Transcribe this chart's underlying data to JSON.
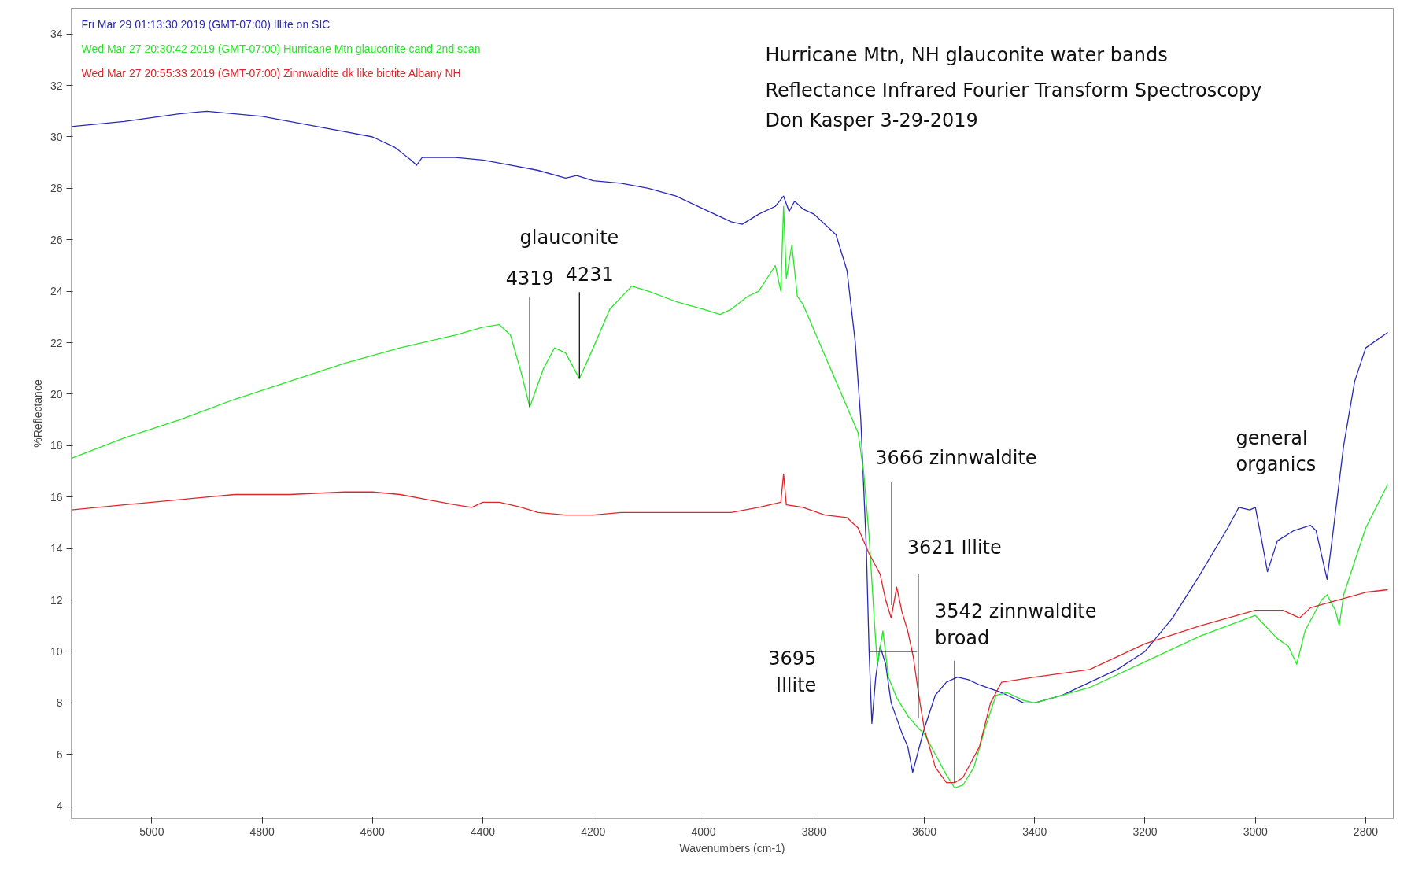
{
  "chart_data": {
    "type": "line",
    "title": "Hurricane Mtn, NH glauconite water bands",
    "subtitle": "Reflectance Infrared Fourier Transform Spectroscopy",
    "xlabel": "Wavenumbers (cm-1)",
    "ylabel": "%Reflectance",
    "xlim": [
      5146,
      2750
    ],
    "ylim": [
      3.5,
      35
    ],
    "xticks": [
      5000,
      4800,
      4600,
      4400,
      4200,
      4000,
      3800,
      3600,
      3400,
      3200,
      3000,
      2800
    ],
    "yticks": [
      4,
      6,
      8,
      10,
      12,
      14,
      16,
      18,
      20,
      22,
      24,
      26,
      28,
      30,
      32,
      34
    ],
    "grid": false,
    "legend": "top left",
    "marker": "none",
    "line_style": "solid",
    "series": [
      {
        "name": "Fri Mar 29 01:13:30 2019 (GMT-07:00) Illite on SIC",
        "color": "#2a2ab8",
        "x": [
          5146,
          5050,
          4950,
          4900,
          4850,
          4800,
          4750,
          4700,
          4650,
          4600,
          4560,
          4530,
          4520,
          4510,
          4450,
          4400,
          4350,
          4300,
          4250,
          4230,
          4200,
          4150,
          4100,
          4050,
          4000,
          3950,
          3930,
          3900,
          3870,
          3855,
          3845,
          3835,
          3820,
          3800,
          3780,
          3760,
          3740,
          3725,
          3715,
          3705,
          3700,
          3695,
          3688,
          3680,
          3670,
          3660,
          3640,
          3630,
          3621,
          3610,
          3600,
          3580,
          3560,
          3540,
          3520,
          3500,
          3460,
          3420,
          3400,
          3350,
          3300,
          3250,
          3200,
          3150,
          3100,
          3050,
          3030,
          3010,
          3000,
          2990,
          2978,
          2960,
          2930,
          2900,
          2890,
          2870,
          2860,
          2840,
          2820,
          2800,
          2760
        ],
        "values": [
          30.4,
          30.6,
          30.9,
          31.0,
          30.9,
          30.8,
          30.6,
          30.4,
          30.2,
          30.0,
          29.6,
          29.1,
          28.9,
          29.2,
          29.2,
          29.1,
          28.9,
          28.7,
          28.4,
          28.5,
          28.3,
          28.2,
          28.0,
          27.7,
          27.2,
          26.7,
          26.6,
          27.0,
          27.3,
          27.7,
          27.1,
          27.5,
          27.2,
          27.0,
          26.6,
          26.2,
          24.8,
          22.0,
          19.0,
          14.0,
          10.0,
          7.2,
          9.0,
          10.2,
          9.5,
          8.0,
          6.8,
          6.3,
          5.3,
          6.2,
          7.0,
          8.3,
          8.8,
          9.0,
          8.9,
          8.7,
          8.4,
          8.0,
          8.0,
          8.3,
          8.8,
          9.3,
          10.0,
          11.3,
          13.0,
          14.8,
          15.6,
          15.5,
          15.6,
          14.5,
          13.1,
          14.3,
          14.7,
          14.9,
          14.7,
          12.8,
          14.5,
          18.0,
          20.5,
          21.8,
          22.4
        ]
      },
      {
        "name": "Wed Mar 27 20:30:42 2019 (GMT-07:00) Hurricane Mtn glauconite cand 2nd scan",
        "color": "#29e629",
        "x": [
          5146,
          5050,
          4950,
          4850,
          4750,
          4650,
          4550,
          4450,
          4400,
          4370,
          4350,
          4330,
          4315,
          4290,
          4270,
          4250,
          4225,
          4200,
          4170,
          4130,
          4100,
          4050,
          4000,
          3970,
          3950,
          3920,
          3900,
          3870,
          3860,
          3855,
          3850,
          3840,
          3830,
          3820,
          3800,
          3780,
          3760,
          3740,
          3720,
          3710,
          3700,
          3690,
          3685,
          3675,
          3665,
          3650,
          3630,
          3610,
          3600,
          3580,
          3560,
          3545,
          3530,
          3510,
          3490,
          3470,
          3450,
          3420,
          3400,
          3350,
          3300,
          3200,
          3100,
          3000,
          2960,
          2940,
          2925,
          2910,
          2880,
          2870,
          2855,
          2848,
          2840,
          2820,
          2800,
          2760
        ],
        "values": [
          17.5,
          18.3,
          19.0,
          19.8,
          20.5,
          21.2,
          21.8,
          22.3,
          22.6,
          22.7,
          22.3,
          20.8,
          19.5,
          21.0,
          21.8,
          21.6,
          20.6,
          21.8,
          23.3,
          24.2,
          24.0,
          23.6,
          23.3,
          23.1,
          23.3,
          23.8,
          24.0,
          25.0,
          24.0,
          27.3,
          24.5,
          25.8,
          23.8,
          23.5,
          22.5,
          21.5,
          20.5,
          19.5,
          18.5,
          17.0,
          14.5,
          11.0,
          9.5,
          10.8,
          9.0,
          8.2,
          7.5,
          7.0,
          6.8,
          6.0,
          5.2,
          4.7,
          4.8,
          5.5,
          7.0,
          8.3,
          8.4,
          8.1,
          8.0,
          8.3,
          8.6,
          9.6,
          10.6,
          11.4,
          10.5,
          10.2,
          9.5,
          10.8,
          12.0,
          12.2,
          11.6,
          11.0,
          12.2,
          13.5,
          14.8,
          16.5
        ]
      },
      {
        "name": "Wed Mar 27 20:55:33 2019 (GMT-07:00) Zinnwaldite dk like biotite Albany NH",
        "color": "#e0262b",
        "x": [
          5146,
          5050,
          4950,
          4850,
          4750,
          4650,
          4600,
          4550,
          4500,
          4450,
          4420,
          4400,
          4370,
          4330,
          4300,
          4250,
          4200,
          4150,
          4050,
          3950,
          3900,
          3860,
          3855,
          3850,
          3820,
          3780,
          3740,
          3720,
          3710,
          3700,
          3690,
          3680,
          3670,
          3660,
          3650,
          3640,
          3630,
          3620,
          3610,
          3600,
          3580,
          3560,
          3545,
          3530,
          3500,
          3480,
          3460,
          3400,
          3300,
          3200,
          3100,
          3000,
          2950,
          2920,
          2900,
          2850,
          2800,
          2760
        ],
        "values": [
          15.5,
          15.7,
          15.9,
          16.1,
          16.1,
          16.2,
          16.2,
          16.1,
          15.9,
          15.7,
          15.6,
          15.8,
          15.8,
          15.6,
          15.4,
          15.3,
          15.3,
          15.4,
          15.4,
          15.4,
          15.6,
          15.8,
          16.9,
          15.7,
          15.6,
          15.3,
          15.2,
          14.8,
          14.3,
          13.8,
          13.4,
          13.0,
          12.0,
          11.3,
          12.5,
          11.5,
          10.8,
          9.8,
          8.3,
          7.0,
          5.5,
          4.9,
          4.9,
          5.1,
          6.3,
          8.0,
          8.8,
          9.0,
          9.3,
          10.3,
          11.0,
          11.6,
          11.6,
          11.3,
          11.7,
          12.0,
          12.3,
          12.4
        ]
      }
    ],
    "annotations": [
      "Don Kasper 3-29-2019",
      "glauconite",
      {
        "text": "4319",
        "x": 4315,
        "y": 19.5
      },
      {
        "text": "4231",
        "x": 4225,
        "y": 20.6
      },
      {
        "text": "3695\nIllite",
        "x": 3700,
        "y": 10.0
      },
      {
        "text": "3666 zinnwaldite",
        "x": 3659,
        "y": 11.8
      },
      {
        "text": "3621 Illite",
        "x": 3611,
        "y": 7.4
      },
      {
        "text": "3542 zinnwaldite\nbroad",
        "x": 3545,
        "y": 4.9
      },
      "general\norganics"
    ]
  }
}
